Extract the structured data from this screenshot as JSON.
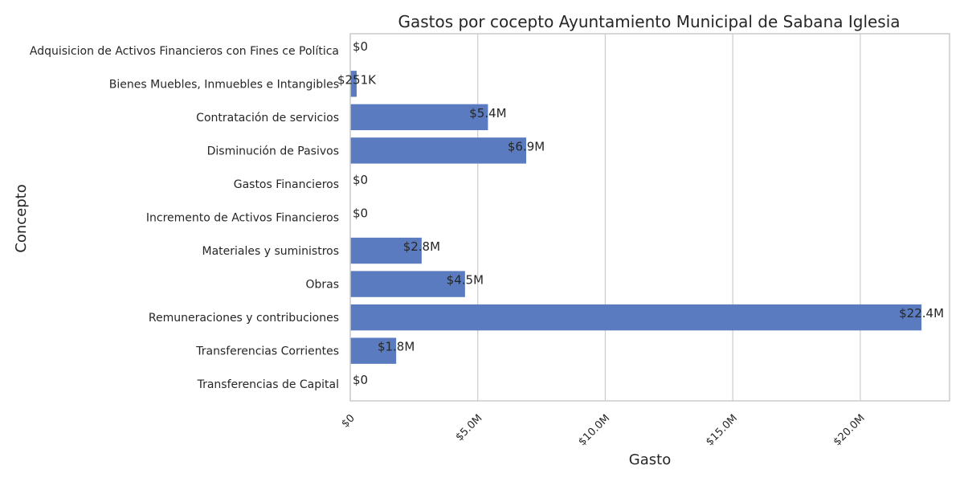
{
  "chart_data": {
    "type": "bar",
    "orientation": "horizontal",
    "title": "Gastos por cocepto Ayuntamiento Municipal de Sabana Iglesia",
    "xlabel": "Gasto",
    "ylabel": "Concepto",
    "bar_color": "#5a7bbf",
    "grid": "vertical",
    "xlim": [
      0,
      23500000
    ],
    "xticks": [
      {
        "value": 0,
        "label": "$0"
      },
      {
        "value": 5000000,
        "label": "$5.0M"
      },
      {
        "value": 10000000,
        "label": "$10.0M"
      },
      {
        "value": 15000000,
        "label": "$15.0M"
      },
      {
        "value": 20000000,
        "label": "$20.0M"
      }
    ],
    "categories": [
      "Adquisicion de Activos Financieros con Fines ce Política",
      "Bienes Muebles, Inmuebles e Intangibles",
      "Contratación de servicios",
      "Disminución de Pasivos",
      "Gastos Financieros",
      "Incremento de Activos Financieros",
      "Materiales y suministros",
      "Obras",
      "Remuneraciones y contribuciones",
      "Transferencias Corrientes",
      "Transferencias de Capital"
    ],
    "values": [
      0,
      251000,
      5400000,
      6900000,
      0,
      0,
      2800000,
      4500000,
      22400000,
      1800000,
      0
    ],
    "value_labels": [
      "$0",
      "$251K",
      "$5.4M",
      "$6.9M",
      "$0",
      "$0",
      "$2.8M",
      "$4.5M",
      "$22.4M",
      "$1.8M",
      "$0"
    ]
  }
}
